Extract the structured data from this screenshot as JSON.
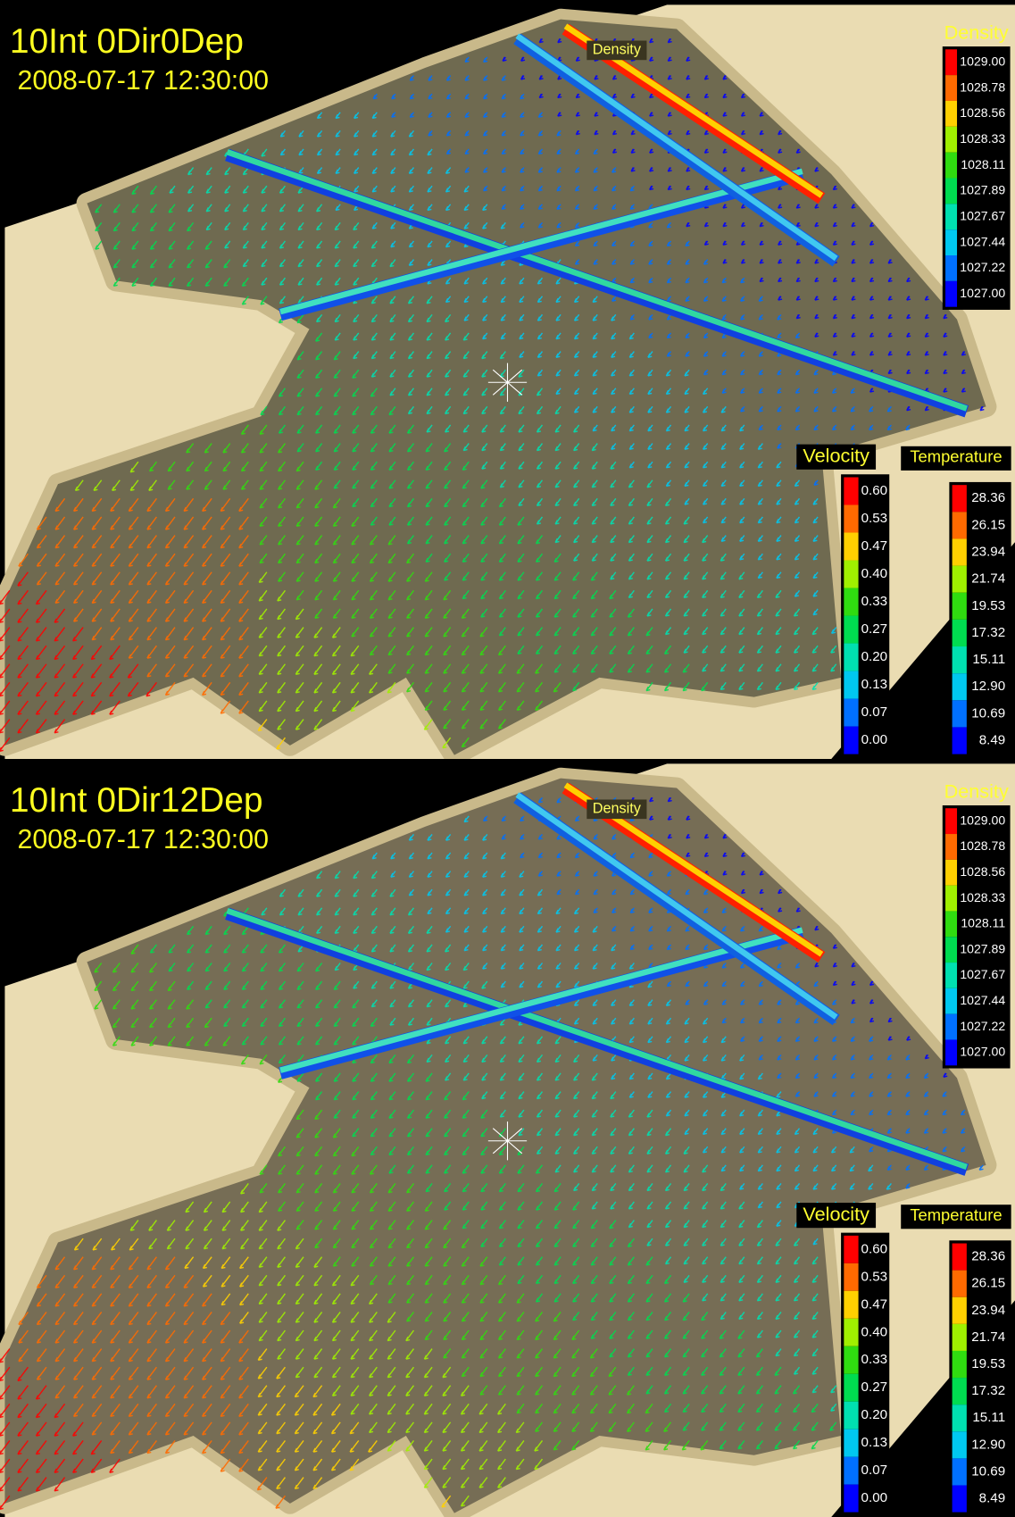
{
  "panels": [
    {
      "title": "10Int 0Dir0Dep",
      "timestamp": "2008-07-17 12:30:00",
      "slice_label": "Density",
      "legends": [
        {
          "title": "Density",
          "labels": [
            "1029.00",
            "1028.78",
            "1028.56",
            "1028.33",
            "1028.11",
            "1027.89",
            "1027.67",
            "1027.44",
            "1027.22",
            "1027.00"
          ]
        },
        {
          "title": "Velocity",
          "labels": [
            "0.60",
            "0.53",
            "0.47",
            "0.40",
            "0.33",
            "0.27",
            "0.20",
            "0.13",
            "0.07",
            "0.00"
          ]
        },
        {
          "title": "Temperature",
          "labels": [
            "28.36",
            "26.15",
            "23.94",
            "21.74",
            "19.53",
            "17.32",
            "15.11",
            "12.90",
            "10.69",
            "8.49"
          ]
        }
      ]
    },
    {
      "title": "10Int 0Dir12Dep",
      "timestamp": "2008-07-17 12:30:00",
      "slice_label": "Density",
      "legends": [
        {
          "title": "Density",
          "labels": [
            "1029.00",
            "1028.78",
            "1028.56",
            "1028.33",
            "1028.11",
            "1027.89",
            "1027.67",
            "1027.44",
            "1027.22",
            "1027.00"
          ]
        },
        {
          "title": "Velocity",
          "labels": [
            "0.60",
            "0.53",
            "0.47",
            "0.40",
            "0.33",
            "0.27",
            "0.20",
            "0.13",
            "0.07",
            "0.00"
          ]
        },
        {
          "title": "Temperature",
          "labels": [
            "28.36",
            "26.15",
            "23.94",
            "21.74",
            "19.53",
            "17.32",
            "15.11",
            "12.90",
            "10.69",
            "8.49"
          ]
        }
      ]
    }
  ],
  "colors": [
    "#ff0000",
    "#ff6a00",
    "#ffd000",
    "#a0f000",
    "#30dc10",
    "#00dc50",
    "#00e0b0",
    "#00c8f0",
    "#0070ff",
    "#0000ff"
  ]
}
